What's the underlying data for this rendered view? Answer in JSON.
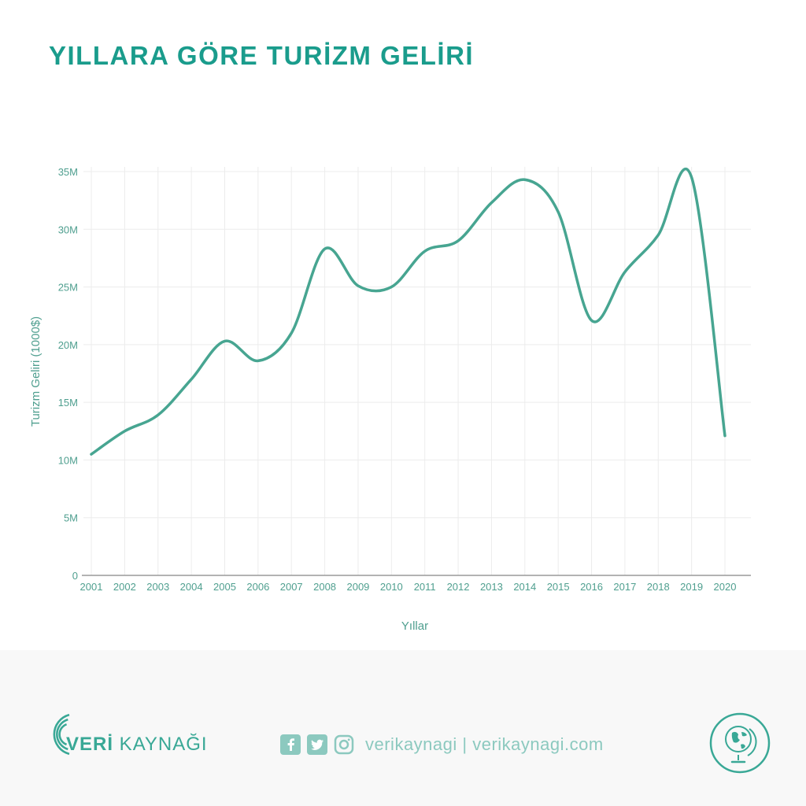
{
  "title": "YILLARA GÖRE TURİZM GELİRİ",
  "chart_data": {
    "type": "line",
    "x": [
      "2001",
      "2002",
      "2003",
      "2004",
      "2005",
      "2006",
      "2007",
      "2008",
      "2009",
      "2010",
      "2011",
      "2012",
      "2013",
      "2014",
      "2015",
      "2016",
      "2017",
      "2018",
      "2019",
      "2020"
    ],
    "series": [
      {
        "values": [
          10.5,
          12.5,
          13.9,
          17.0,
          20.3,
          18.6,
          21.0,
          28.3,
          25.1,
          25.0,
          28.1,
          29.0,
          32.3,
          34.3,
          31.5,
          22.1,
          26.3,
          29.5,
          34.5,
          12.1
        ]
      }
    ],
    "ylim": [
      0,
      35
    ],
    "yticks": [
      "0",
      "5M",
      "10M",
      "15M",
      "20M",
      "25M",
      "30M",
      "35M"
    ],
    "ytick_values": [
      0,
      5,
      10,
      15,
      20,
      25,
      30,
      35
    ],
    "xlabel": "Yıllar",
    "ylabel": "Turizm Geliri (1000$)",
    "grid": true,
    "color": "#47a591"
  },
  "footer": {
    "brand_bold": "VERİ",
    "brand_rest": " KAYNAĞI",
    "social_text": "verikaynagi | verikaynagi.com",
    "icons": [
      "facebook-icon",
      "twitter-icon",
      "instagram-icon",
      "globe-icon"
    ]
  },
  "colors": {
    "accent": "#1a9c8c",
    "line": "#47a591",
    "footer_bg": "#f8f8f8"
  }
}
